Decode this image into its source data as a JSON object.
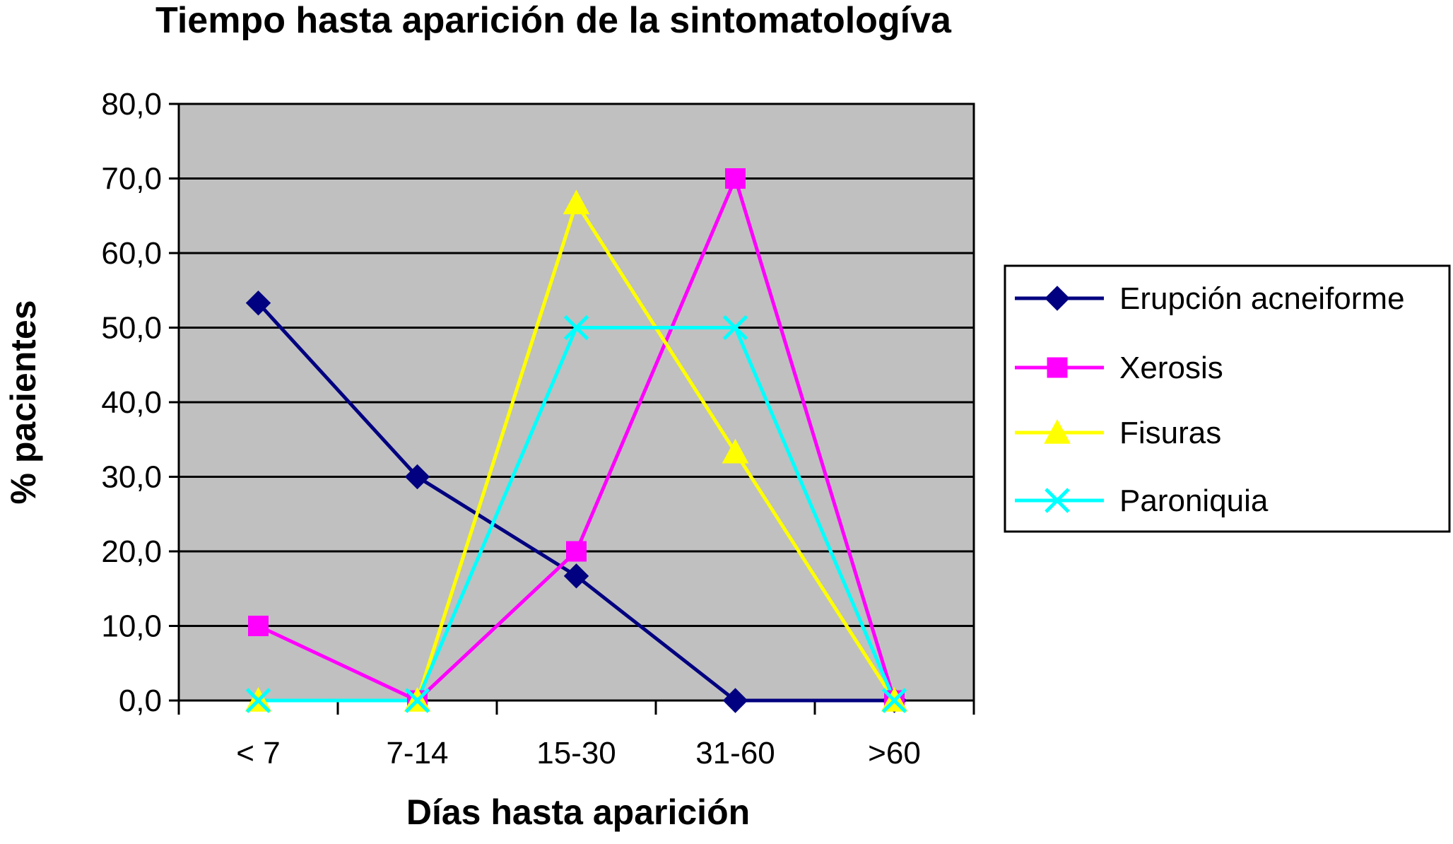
{
  "chart_data": {
    "type": "line",
    "title": "Tiempo hasta aparición de  la sintomatologíva",
    "xlabel": "Días hasta aparición",
    "ylabel": "% pacientes",
    "categories": [
      "< 7",
      "7-14",
      "15-30",
      "31-60",
      ">60"
    ],
    "ylim": [
      0,
      80
    ],
    "yticks": [
      "0,0",
      "10,0",
      "20,0",
      "30,0",
      "40,0",
      "50,0",
      "60,0",
      "70,0",
      "80,0"
    ],
    "grid": true,
    "legend_position": "right",
    "plot_background": "#c0c0c0",
    "series": [
      {
        "name": "Erupción acneiforme",
        "values": [
          53.3,
          30.0,
          16.7,
          0.0,
          0.0
        ],
        "color": "#000080",
        "marker": "diamond"
      },
      {
        "name": "Xerosis",
        "values": [
          10.0,
          0.0,
          20.0,
          70.0,
          0.0
        ],
        "color": "#ff00ff",
        "marker": "square"
      },
      {
        "name": "Fisuras",
        "values": [
          0.0,
          0.0,
          66.7,
          33.3,
          0.0
        ],
        "color": "#ffff00",
        "marker": "triangle"
      },
      {
        "name": "Paroniquia",
        "values": [
          0.0,
          0.0,
          50.0,
          50.0,
          0.0
        ],
        "color": "#00ffff",
        "marker": "x"
      }
    ]
  }
}
